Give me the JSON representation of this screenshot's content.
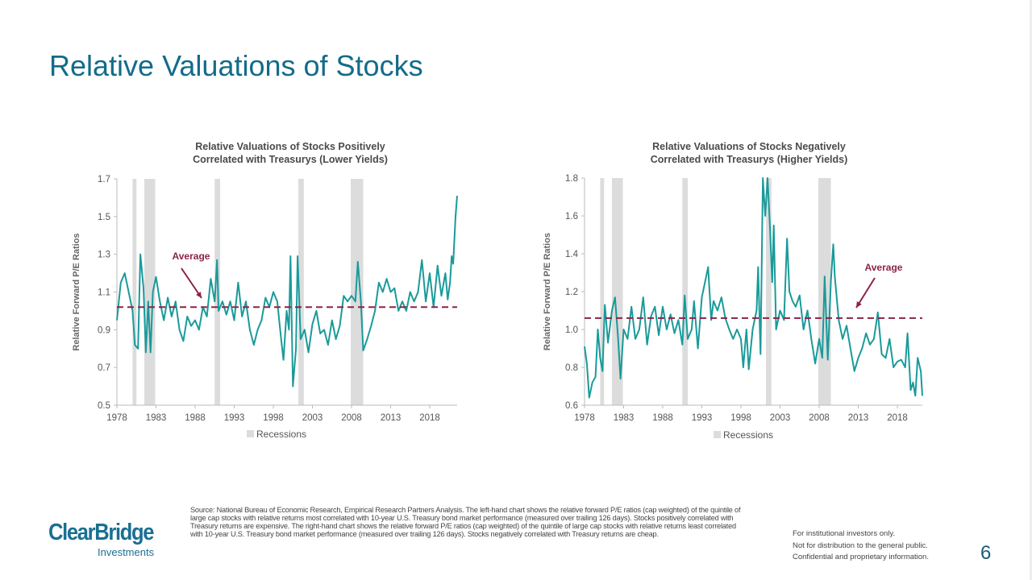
{
  "slide": {
    "title": "Relative Valuations of Stocks",
    "page_number": "6",
    "source": "Source: National Bureau of Economic Research, Empirical Research Partners Analysis. The left-hand chart shows the relative forward P/E ratios (cap weighted) of the quintile of large cap stocks with relative returns most correlated with 10-year U.S. Treasury bond market performance (measured over trailing 126 days). Stocks positively correlated with Treasury returns are expensive. The right-hand chart shows the relative forward P/E ratios (cap weighted) of the quintile of large cap stocks with relative returns least correlated with 10-year U.S. Treasury bond market performance (measured over trailing 126 days). Stocks negatively correlated with Treasury returns are cheap.",
    "disclaimer": [
      "For institutional investors only.",
      "Not for distribution to the general public.",
      "Confidential and proprietary information."
    ],
    "logo": {
      "line1": "ClearBridge",
      "line2": "Investments"
    }
  },
  "colors": {
    "title": "#136b8a",
    "series": "#1a9a9a",
    "average": "#8b2346",
    "recession": "#dcdcdc"
  },
  "chart_data": [
    {
      "type": "line",
      "title": [
        "Relative Valuations of Stocks Positively",
        "Correlated with Treasurys (Lower Yields)"
      ],
      "ylabel": "Relative Forward P/E Ratios",
      "xlabel": "",
      "ylim": [
        0.5,
        1.7
      ],
      "yticks": [
        "0.5",
        "0.7",
        "0.9",
        "1.1",
        "1.3",
        "1.5",
        "1.7"
      ],
      "xticks": [
        "1978",
        "1983",
        "1988",
        "1993",
        "1998",
        "2003",
        "2008",
        "2013",
        "2018"
      ],
      "grid": false,
      "legend": {
        "label": "Recessions",
        "placement": "bottom"
      },
      "average": {
        "label": "Average",
        "value": 1.02
      },
      "recessions": [
        [
          1980.0,
          1980.5
        ],
        [
          1981.5,
          1982.9
        ],
        [
          1990.5,
          1991.2
        ],
        [
          2001.2,
          2001.9
        ],
        [
          2007.9,
          2009.5
        ]
      ],
      "series": [
        {
          "x": [
            1978,
            1978.5,
            1979,
            1979.5,
            1980,
            1980.3,
            1980.7,
            1981,
            1981.4,
            1981.7,
            1982,
            1982.3,
            1982.6,
            1983,
            1983.5,
            1984,
            1984.5,
            1985,
            1985.5,
            1986,
            1986.5,
            1987,
            1987.5,
            1988,
            1988.5,
            1989,
            1989.5,
            1990,
            1990.5,
            1990.8,
            1991,
            1991.5,
            1992,
            1992.5,
            1993,
            1993.5,
            1994,
            1994.5,
            1995,
            1995.5,
            1996,
            1996.5,
            1997,
            1997.5,
            1998,
            1998.5,
            1999,
            1999.3,
            1999.7,
            2000,
            2000.2,
            2000.5,
            2000.9,
            2001.1,
            2001.5,
            2002,
            2002.5,
            2003,
            2003.5,
            2004,
            2004.5,
            2005,
            2005.5,
            2006,
            2006.5,
            2007,
            2007.5,
            2008,
            2008.5,
            2008.8,
            2009.2,
            2009.5,
            2010,
            2010.5,
            2011,
            2011.5,
            2012,
            2012.5,
            2013,
            2013.5,
            2014,
            2014.5,
            2015,
            2015.5,
            2016,
            2016.5,
            2017,
            2017.5,
            2018,
            2018.5,
            2019,
            2019.5,
            2020,
            2020.3,
            2020.6,
            2020.8,
            2021,
            2021.3,
            2021.5
          ],
          "y": [
            0.95,
            1.15,
            1.2,
            1.1,
            1.0,
            0.82,
            0.8,
            1.3,
            1.12,
            0.78,
            1.05,
            0.78,
            1.1,
            1.18,
            1.05,
            0.95,
            1.07,
            0.97,
            1.05,
            0.9,
            0.84,
            0.97,
            0.92,
            0.95,
            0.9,
            1.02,
            0.97,
            1.17,
            1.05,
            1.27,
            1.0,
            1.05,
            0.98,
            1.05,
            0.95,
            1.15,
            0.97,
            1.05,
            0.9,
            0.82,
            0.9,
            0.95,
            1.07,
            1.02,
            1.1,
            1.05,
            0.85,
            0.74,
            1.0,
            0.9,
            1.29,
            0.6,
            0.8,
            1.29,
            0.85,
            0.9,
            0.78,
            0.93,
            1.0,
            0.88,
            0.9,
            0.82,
            0.95,
            0.85,
            0.92,
            1.08,
            1.05,
            1.08,
            1.05,
            1.26,
            1.05,
            0.79,
            0.85,
            0.92,
            1.0,
            1.15,
            1.1,
            1.17,
            1.1,
            1.12,
            1.0,
            1.05,
            1.0,
            1.1,
            1.05,
            1.1,
            1.27,
            1.05,
            1.2,
            1.02,
            1.24,
            1.08,
            1.2,
            1.06,
            1.15,
            1.29,
            1.25,
            1.5,
            1.61
          ]
        }
      ]
    },
    {
      "type": "line",
      "title": [
        "Relative Valuations of Stocks Negatively",
        "Correlated with Treasurys (Higher Yields)"
      ],
      "ylabel": "Relative Forward P/E Ratios",
      "xlabel": "",
      "ylim": [
        0.6,
        1.8
      ],
      "yticks": [
        "0.6",
        "0.8",
        "1.0",
        "1.2",
        "1.4",
        "1.6",
        "1.8"
      ],
      "xticks": [
        "1978",
        "1983",
        "1988",
        "1993",
        "1998",
        "2003",
        "2008",
        "2013",
        "2018"
      ],
      "grid": false,
      "legend": {
        "label": "Recessions",
        "placement": "bottom"
      },
      "average": {
        "label": "Average",
        "value": 1.06
      },
      "recessions": [
        [
          1980.0,
          1980.5
        ],
        [
          1981.5,
          1982.9
        ],
        [
          1990.5,
          1991.2
        ],
        [
          2001.2,
          2001.9
        ],
        [
          2007.9,
          2009.5
        ]
      ],
      "series": [
        {
          "x": [
            1978,
            1978.3,
            1978.6,
            1979,
            1979.4,
            1979.7,
            1980,
            1980.3,
            1980.6,
            1981,
            1981.5,
            1981.9,
            1982.3,
            1982.6,
            1983,
            1983.5,
            1984,
            1984.5,
            1985,
            1985.5,
            1986,
            1986.5,
            1987,
            1987.5,
            1988,
            1988.5,
            1989,
            1989.5,
            1990,
            1990.5,
            1990.8,
            1991.2,
            1991.7,
            1992,
            1992.5,
            1993,
            1993.5,
            1993.8,
            1994.2,
            1994.5,
            1995,
            1995.5,
            1996,
            1996.5,
            1997,
            1997.5,
            1998,
            1998.3,
            1998.7,
            1999,
            1999.5,
            2000,
            2000.2,
            2000.5,
            2000.8,
            2001.1,
            2001.4,
            2001.7,
            2002,
            2002.2,
            2002.5,
            2003,
            2003.5,
            2003.9,
            2004.2,
            2004.6,
            2005,
            2005.5,
            2006,
            2006.5,
            2007,
            2007.5,
            2008,
            2008.4,
            2008.7,
            2009.1,
            2009.5,
            2009.8,
            2010,
            2010.5,
            2011,
            2011.5,
            2012,
            2012.5,
            2013,
            2013.5,
            2014,
            2014.5,
            2015,
            2015.5,
            2016,
            2016.5,
            2017,
            2017.5,
            2018,
            2018.5,
            2019,
            2019.3,
            2019.7,
            2020,
            2020.3,
            2020.6,
            2021,
            2021.2
          ],
          "y": [
            0.91,
            0.82,
            0.64,
            0.72,
            0.75,
            1.0,
            0.85,
            0.78,
            1.13,
            0.93,
            1.1,
            1.17,
            0.95,
            0.74,
            1.0,
            0.95,
            1.12,
            0.95,
            1.0,
            1.17,
            0.92,
            1.07,
            1.12,
            0.97,
            1.12,
            1.0,
            1.08,
            0.98,
            1.05,
            0.92,
            1.18,
            0.95,
            1.0,
            1.15,
            0.9,
            1.17,
            1.27,
            1.33,
            1.05,
            1.15,
            1.1,
            1.17,
            1.06,
            1.0,
            0.95,
            1.0,
            0.95,
            0.8,
            1.0,
            0.79,
            1.0,
            1.1,
            1.33,
            0.87,
            1.8,
            1.6,
            1.8,
            1.55,
            1.25,
            1.55,
            1.0,
            1.1,
            1.05,
            1.48,
            1.2,
            1.15,
            1.12,
            1.18,
            1.0,
            1.1,
            0.95,
            0.82,
            0.95,
            0.85,
            1.28,
            0.84,
            1.25,
            1.45,
            1.28,
            1.05,
            0.95,
            1.02,
            0.9,
            0.78,
            0.85,
            0.9,
            0.98,
            0.92,
            0.95,
            1.09,
            0.87,
            0.85,
            0.95,
            0.8,
            0.83,
            0.84,
            0.8,
            0.98,
            0.68,
            0.72,
            0.65,
            0.85,
            0.78,
            0.65
          ]
        }
      ]
    }
  ]
}
